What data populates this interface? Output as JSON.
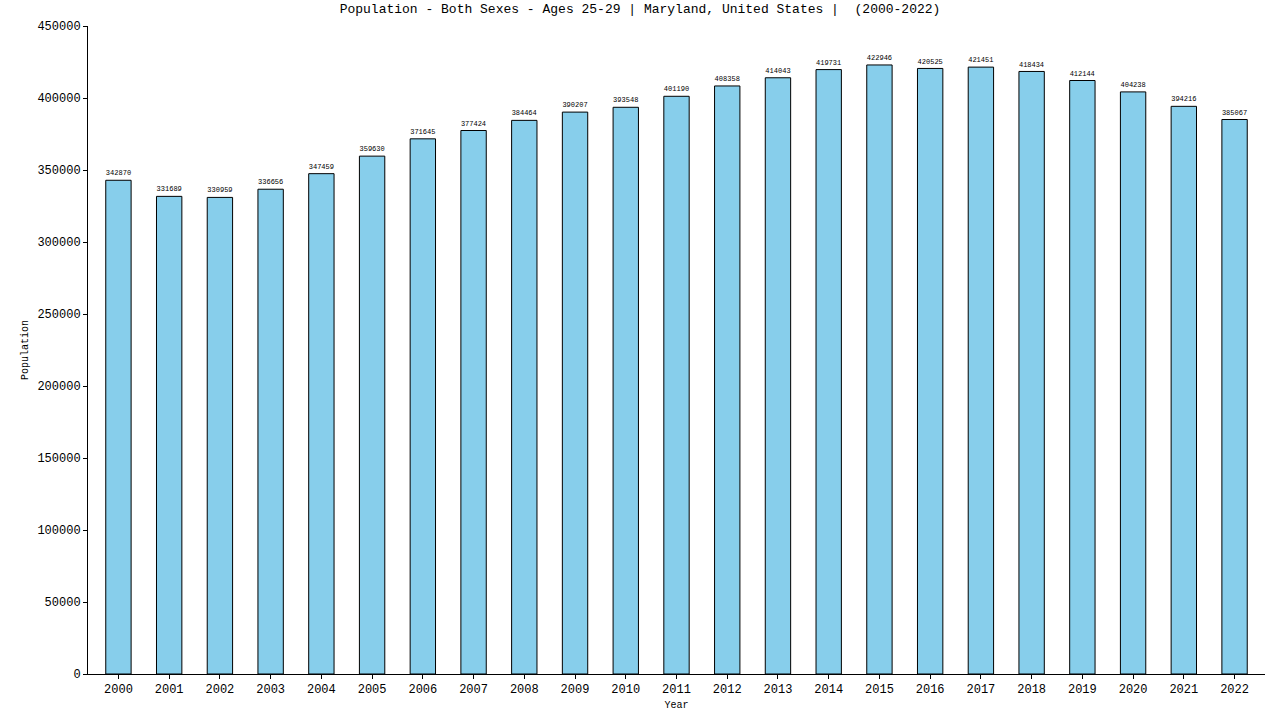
{
  "chart_data": {
    "type": "bar",
    "title": "Population - Both Sexes - Ages 25-29 | Maryland, United States |  (2000-2022)",
    "x_label": "Year",
    "y_label": "Population",
    "categories": [
      "2000",
      "2001",
      "2002",
      "2003",
      "2004",
      "2005",
      "2006",
      "2007",
      "2008",
      "2009",
      "2010",
      "2011",
      "2012",
      "2013",
      "2014",
      "2015",
      "2016",
      "2017",
      "2018",
      "2019",
      "2020",
      "2021",
      "2022"
    ],
    "values": [
      342870,
      331689,
      330959,
      336656,
      347459,
      359630,
      371645,
      377424,
      384464,
      390207,
      393548,
      401190,
      408358,
      414043,
      419731,
      422946,
      420525,
      421451,
      418434,
      412144,
      404238,
      394216,
      385067
    ],
    "color": "#87ceeb",
    "ylim": [
      0,
      450000
    ],
    "yticks": [
      0,
      50000,
      100000,
      150000,
      200000,
      250000,
      300000,
      350000,
      400000,
      450000
    ],
    "grid": false,
    "data_labels": true
  }
}
